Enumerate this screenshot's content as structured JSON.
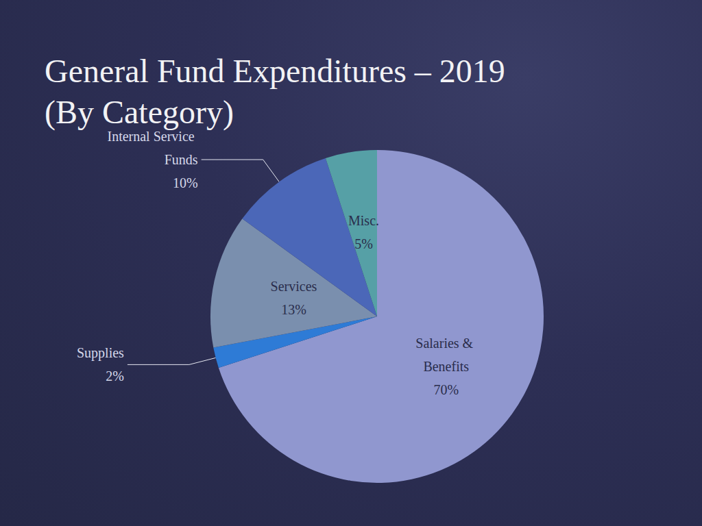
{
  "chart_data": {
    "type": "pie",
    "title": "General Fund Expenditures – 2019\n(By Category)",
    "categories": [
      "Salaries & Benefits",
      "Supplies",
      "Services",
      "Internal Service Funds",
      "Misc."
    ],
    "values": [
      70,
      2,
      13,
      10,
      5
    ],
    "value_labels": [
      "70%",
      "2%",
      "13%",
      "10%",
      "5%"
    ],
    "colors": [
      "#9097cf",
      "#2e7bd6",
      "#7a8fae",
      "#4b67b8",
      "#56a0a6"
    ],
    "data_labels": true
  }
}
